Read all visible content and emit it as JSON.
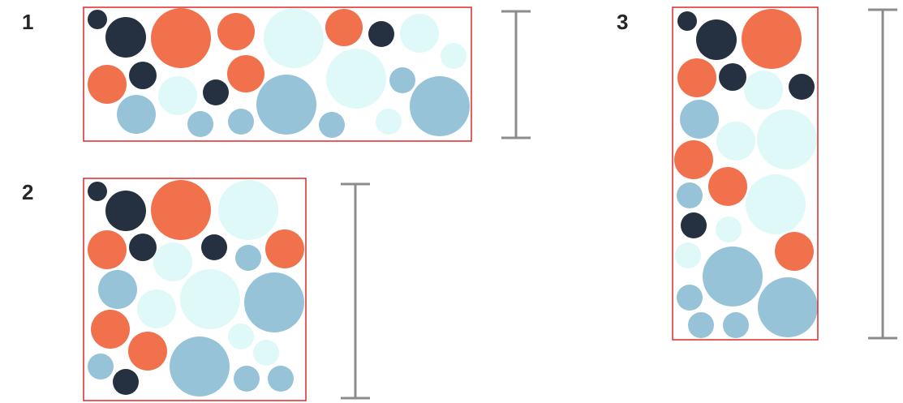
{
  "panels": [
    {
      "label": "1",
      "layout": "wide"
    },
    {
      "label": "2",
      "layout": "square"
    },
    {
      "label": "3",
      "layout": "tall"
    }
  ],
  "colors": {
    "dark": "#253040",
    "orange": "#f0714b",
    "blue": "#96c3d8",
    "mint": "#dff8f8",
    "frame": "#e0282a",
    "bracket": "#8c8c8c"
  }
}
